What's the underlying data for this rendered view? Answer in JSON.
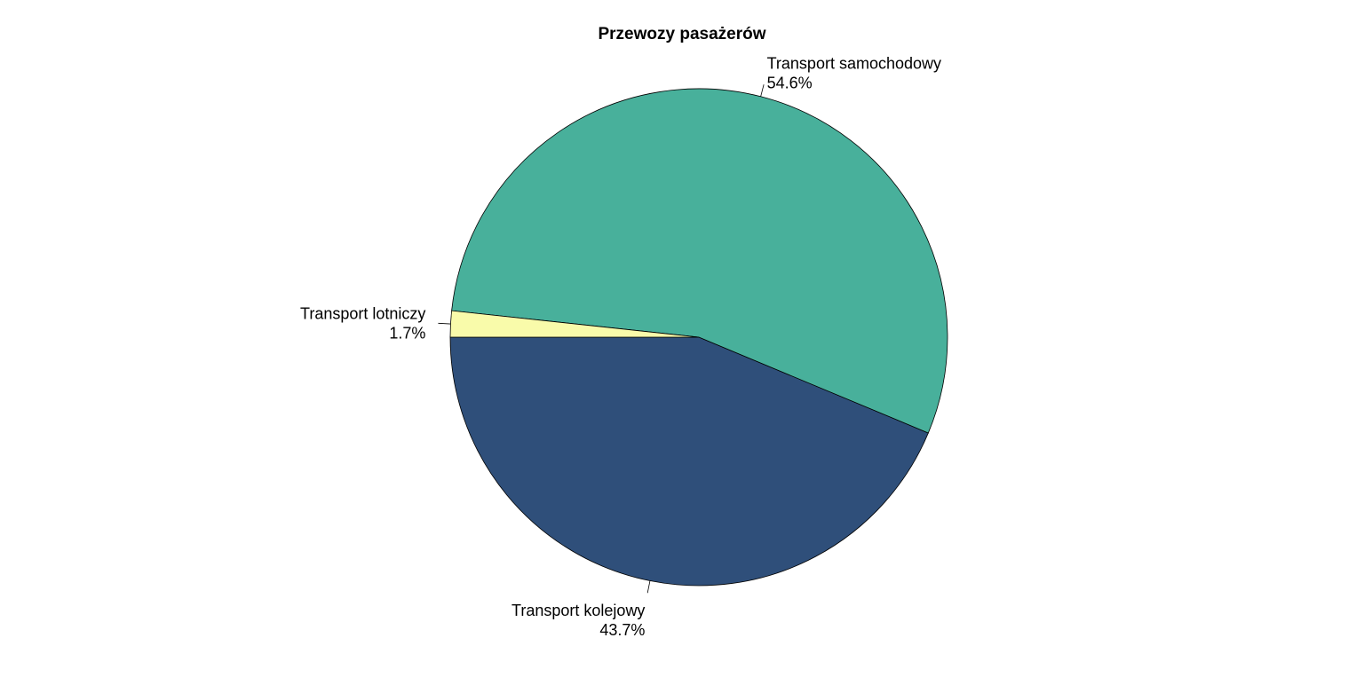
{
  "chart_data": {
    "type": "pie",
    "title": "Przewozy pasażerów",
    "slices": [
      {
        "label": "Transport kolejowy",
        "value": 43.7,
        "percent_label": "43.7%",
        "color": "#2f4f7a"
      },
      {
        "label": "Transport samochodowy",
        "value": 54.6,
        "percent_label": "54.6%",
        "color": "#48b09b"
      },
      {
        "label": "Transport lotniczy",
        "value": 1.7,
        "percent_label": "1.7%",
        "color": "#f9fbaa"
      }
    ],
    "start_angle_deg": 180,
    "direction": "counterclockwise",
    "legend": "none"
  }
}
